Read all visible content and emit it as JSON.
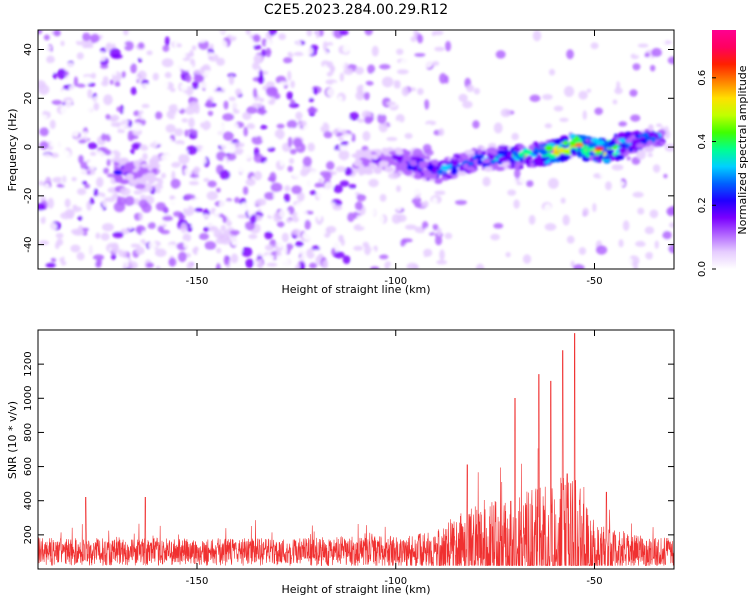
{
  "title": "C2E5.2023.284.00.29.R12",
  "chart_data": [
    {
      "type": "heatmap",
      "xlabel": "Height of straight line (km)",
      "ylabel": "Frequency (Hz)",
      "xlim": [
        -190,
        -30
      ],
      "ylim": [
        -50,
        48
      ],
      "xticks": [
        -150,
        -100,
        -50
      ],
      "yticks": [
        -40,
        -20,
        0,
        20,
        40
      ],
      "colorbar": {
        "label": "Normalized spectral amplitude",
        "range": [
          0,
          0.75
        ],
        "ticks": [
          0.0,
          0.2,
          0.4,
          0.6
        ],
        "colors": [
          "#ffffff",
          "#e6ccff",
          "#b266ff",
          "#7a00ff",
          "#2000ff",
          "#0060ff",
          "#00d0ff",
          "#00ff90",
          "#40ff00",
          "#c0ff00",
          "#ffe000",
          "#ff8000",
          "#ff2000",
          "#ff0060",
          "#ff0090"
        ]
      },
      "ridge": {
        "description_points": [
          {
            "x": -170,
            "y": -10,
            "amp": 0.22
          },
          {
            "x": -160,
            "y": -10,
            "amp": 0.12
          },
          {
            "x": -108,
            "y": -6,
            "amp": 0.12
          },
          {
            "x": -100,
            "y": -5,
            "amp": 0.2
          },
          {
            "x": -90,
            "y": -10,
            "amp": 0.35
          },
          {
            "x": -80,
            "y": -5,
            "amp": 0.3
          },
          {
            "x": -70,
            "y": -4,
            "amp": 0.4
          },
          {
            "x": -60,
            "y": -2,
            "amp": 0.55
          },
          {
            "x": -55,
            "y": 1,
            "amp": 0.65
          },
          {
            "x": -48,
            "y": -2,
            "amp": 0.7
          },
          {
            "x": -40,
            "y": 2,
            "amp": 0.35
          },
          {
            "x": -33,
            "y": 5,
            "amp": 0.3
          }
        ]
      }
    },
    {
      "type": "line",
      "xlabel": "Height of straight line (km)",
      "ylabel": "SNR (10 * v/v)",
      "xlim": [
        -190,
        -30
      ],
      "ylim": [
        0,
        1400
      ],
      "xticks": [
        -150,
        -100,
        -50
      ],
      "yticks": [
        200,
        400,
        600,
        800,
        1000,
        1200
      ],
      "series_color": "#f03030",
      "envelope": [
        {
          "x": -190,
          "y": 150
        },
        {
          "x": -160,
          "y": 150
        },
        {
          "x": -130,
          "y": 150
        },
        {
          "x": -100,
          "y": 165
        },
        {
          "x": -90,
          "y": 190
        },
        {
          "x": -85,
          "y": 300
        },
        {
          "x": -80,
          "y": 360
        },
        {
          "x": -75,
          "y": 400
        },
        {
          "x": -70,
          "y": 430
        },
        {
          "x": -65,
          "y": 480
        },
        {
          "x": -60,
          "y": 520
        },
        {
          "x": -56,
          "y": 600
        },
        {
          "x": -52,
          "y": 420
        },
        {
          "x": -50,
          "y": 260
        },
        {
          "x": -45,
          "y": 200
        },
        {
          "x": -40,
          "y": 170
        },
        {
          "x": -30,
          "y": 150
        }
      ],
      "peaks": [
        {
          "x": -55,
          "y": 1380
        },
        {
          "x": -58,
          "y": 1280
        },
        {
          "x": -64,
          "y": 1140
        },
        {
          "x": -61,
          "y": 1100
        },
        {
          "x": -70,
          "y": 1000
        },
        {
          "x": -82,
          "y": 610
        },
        {
          "x": -47,
          "y": 450
        },
        {
          "x": -178,
          "y": 420
        },
        {
          "x": -163,
          "y": 420
        }
      ]
    }
  ]
}
